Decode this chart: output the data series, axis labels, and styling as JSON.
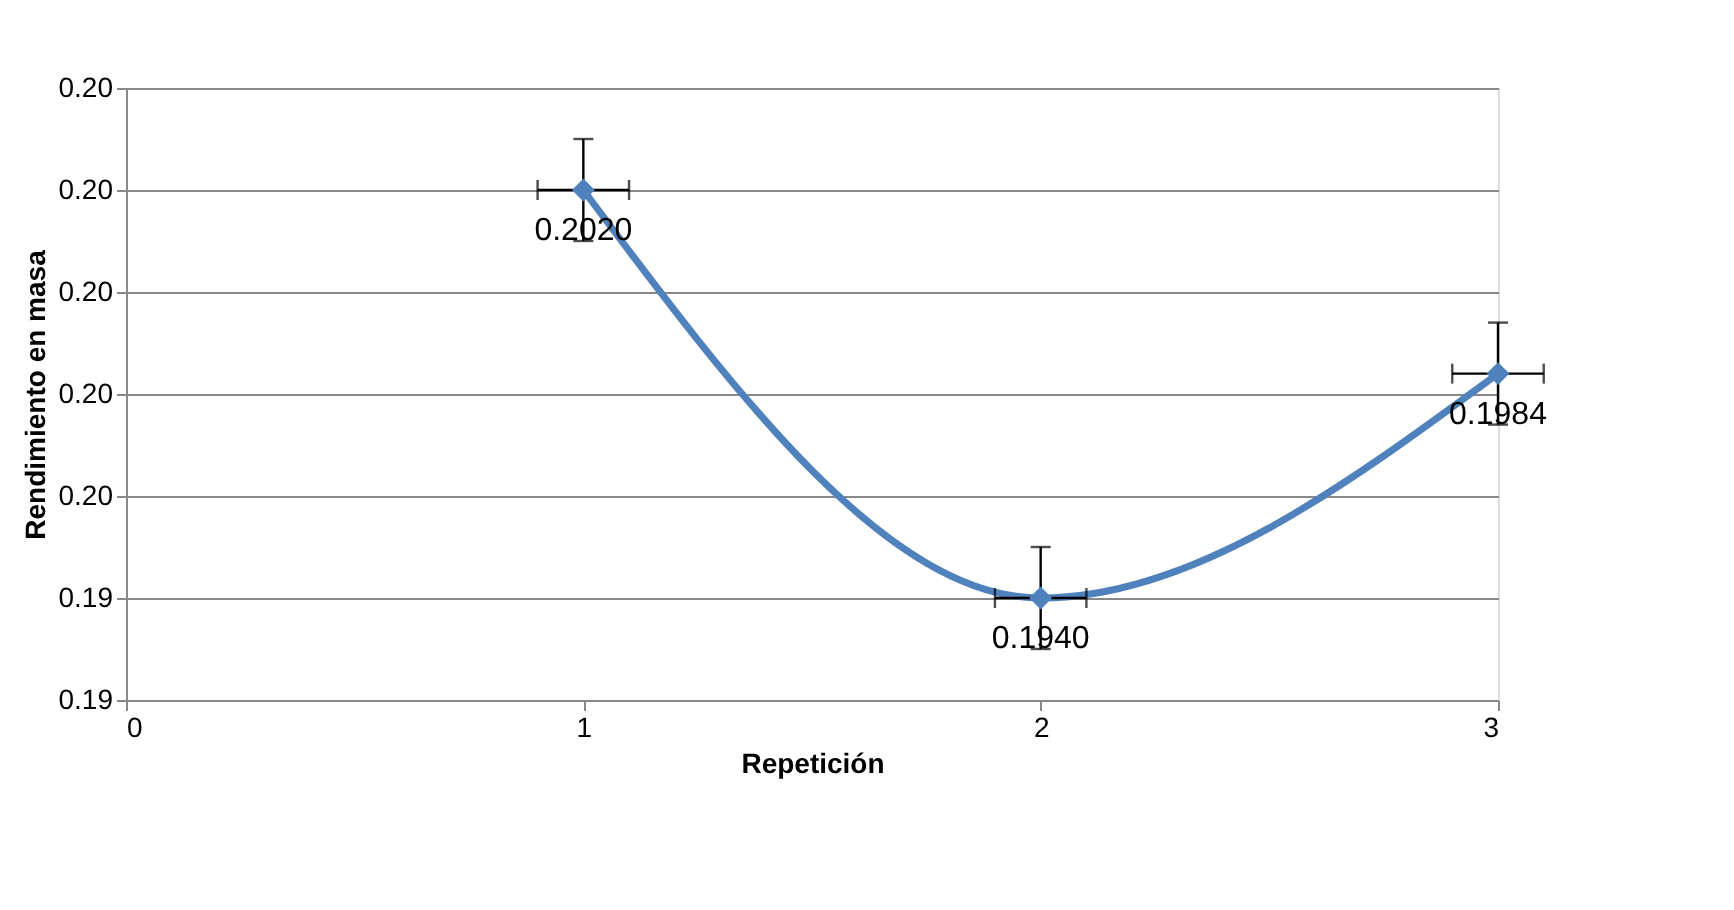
{
  "chart_data": {
    "type": "line",
    "xlabel": "Repetición",
    "ylabel": "Rendimiento en masa",
    "x": [
      1,
      2,
      3
    ],
    "series": [
      {
        "color": "#4f81bd",
        "values": [
          0.202,
          0.194,
          0.1984
        ],
        "value_labels": [
          "0.2020",
          "0.1940",
          "0.1984"
        ],
        "errors": [
          0.001,
          0.001,
          0.001
        ],
        "xerrors": [
          0.1,
          0.1,
          0.1
        ]
      }
    ],
    "xlim": [
      0,
      3
    ],
    "xticks": [
      0,
      1,
      2,
      3
    ],
    "ylim": [
      0.192,
      0.204
    ],
    "yticks": [
      {
        "value": 0.192,
        "label": "0.19"
      },
      {
        "value": 0.194,
        "label": "0.19"
      },
      {
        "value": 0.196,
        "label": "0.20"
      },
      {
        "value": 0.198,
        "label": "0.20"
      },
      {
        "value": 0.2,
        "label": "0.20"
      },
      {
        "value": 0.202,
        "label": "0.20"
      },
      {
        "value": 0.204,
        "label": "0.20"
      }
    ],
    "grid": "y",
    "legend": false,
    "marker": "diamond",
    "line_style": "solid"
  }
}
